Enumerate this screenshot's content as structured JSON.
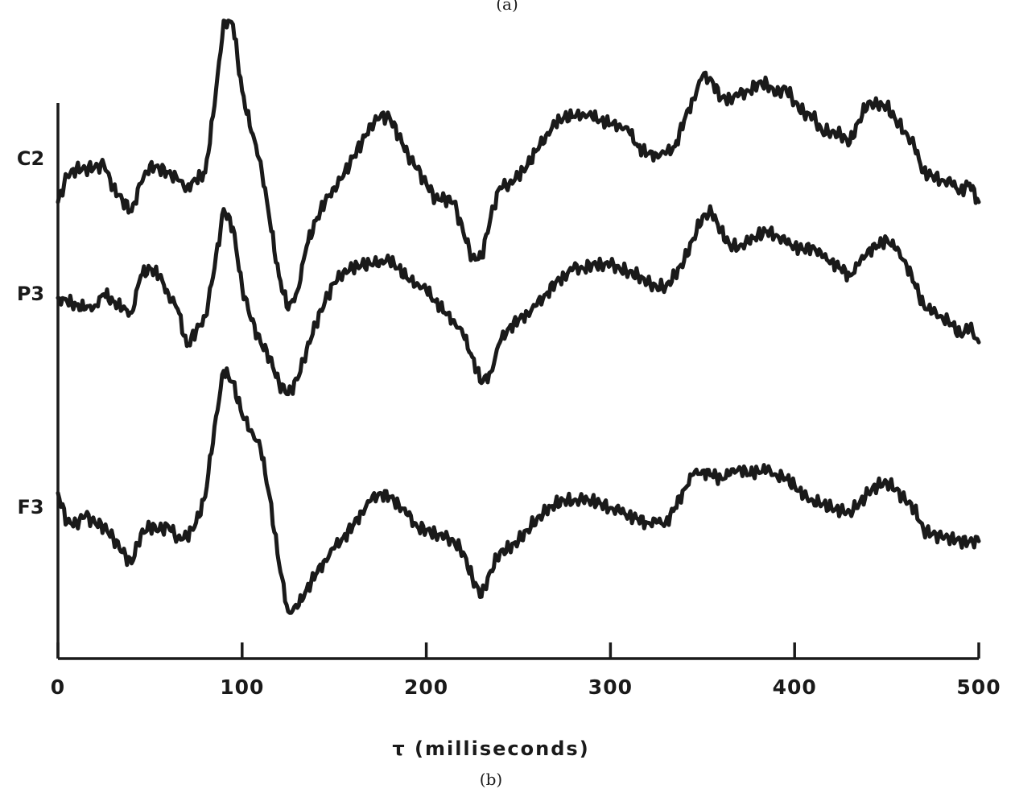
{
  "captions": {
    "top": "(a)",
    "bottom": "(b)"
  },
  "chart_data": {
    "type": "line",
    "xlabel": "τ (milliseconds)",
    "ylabel": "",
    "xlim": [
      0,
      500
    ],
    "xticks": [
      0,
      100,
      200,
      300,
      400,
      500
    ],
    "grid": false,
    "legend": "none (series labeled at left of each trace)",
    "series": [
      {
        "name": "C2",
        "x": [
          0,
          5,
          10,
          15,
          20,
          25,
          30,
          35,
          40,
          45,
          50,
          55,
          60,
          65,
          70,
          75,
          80,
          85,
          90,
          95,
          100,
          105,
          110,
          115,
          120,
          125,
          130,
          135,
          140,
          145,
          150,
          155,
          160,
          165,
          170,
          175,
          180,
          185,
          190,
          195,
          200,
          205,
          210,
          215,
          220,
          225,
          230,
          235,
          240,
          245,
          250,
          255,
          260,
          265,
          270,
          275,
          280,
          285,
          290,
          295,
          300,
          305,
          310,
          315,
          320,
          325,
          330,
          335,
          340,
          345,
          350,
          355,
          360,
          365,
          370,
          375,
          380,
          385,
          390,
          395,
          400,
          405,
          410,
          415,
          420,
          425,
          430,
          435,
          440,
          445,
          450,
          455,
          460,
          465,
          470,
          475,
          480,
          485,
          490,
          495,
          500
        ],
        "y": [
          -1.0,
          -0.3,
          -0.1,
          -0.1,
          -0.05,
          0.0,
          -0.6,
          -0.95,
          -1.25,
          -0.5,
          0.0,
          -0.1,
          -0.2,
          -0.4,
          -0.6,
          -0.4,
          -0.2,
          1.6,
          3.9,
          3.8,
          2.0,
          0.9,
          0.1,
          -1.5,
          -3.0,
          -3.9,
          -3.4,
          -2.2,
          -1.5,
          -1.0,
          -0.6,
          -0.3,
          0.2,
          0.6,
          1.1,
          1.3,
          1.3,
          0.8,
          0.3,
          -0.1,
          -0.5,
          -0.9,
          -0.9,
          -1.0,
          -1.8,
          -2.5,
          -2.5,
          -1.4,
          -0.6,
          -0.5,
          -0.3,
          0.0,
          0.4,
          0.8,
          1.1,
          1.3,
          1.3,
          1.4,
          1.3,
          1.2,
          1.1,
          1.1,
          0.9,
          0.5,
          0.3,
          0.3,
          0.3,
          0.5,
          1.2,
          1.8,
          2.4,
          2.3,
          1.8,
          1.8,
          1.9,
          2.0,
          2.2,
          2.2,
          1.9,
          2.1,
          1.7,
          1.4,
          1.3,
          0.9,
          0.9,
          0.8,
          0.6,
          1.2,
          1.7,
          1.6,
          1.6,
          1.2,
          0.9,
          0.5,
          -0.2,
          -0.3,
          -0.4,
          -0.5,
          -0.7,
          -0.5,
          -1.0
        ]
      },
      {
        "name": "P3",
        "x": [
          0,
          5,
          10,
          15,
          20,
          25,
          30,
          35,
          40,
          45,
          50,
          55,
          60,
          65,
          70,
          75,
          80,
          85,
          90,
          95,
          100,
          105,
          110,
          115,
          120,
          125,
          130,
          135,
          140,
          145,
          150,
          155,
          160,
          165,
          170,
          175,
          180,
          185,
          190,
          195,
          200,
          205,
          210,
          215,
          220,
          225,
          230,
          235,
          240,
          245,
          250,
          255,
          260,
          265,
          270,
          275,
          280,
          285,
          290,
          295,
          300,
          305,
          310,
          315,
          320,
          325,
          330,
          335,
          340,
          345,
          350,
          355,
          360,
          365,
          370,
          375,
          380,
          385,
          390,
          395,
          400,
          405,
          410,
          415,
          420,
          425,
          430,
          435,
          440,
          445,
          450,
          455,
          460,
          465,
          470,
          475,
          480,
          485,
          490,
          495,
          500
        ],
        "y": [
          0.0,
          -0.1,
          -0.2,
          -0.3,
          -0.2,
          0.1,
          -0.1,
          -0.3,
          -0.4,
          0.6,
          0.8,
          0.6,
          0.1,
          -0.3,
          -1.3,
          -0.9,
          -0.5,
          0.8,
          2.4,
          1.9,
          0.3,
          -0.6,
          -1.2,
          -1.6,
          -2.3,
          -2.6,
          -2.2,
          -1.4,
          -0.7,
          -0.1,
          0.4,
          0.7,
          0.8,
          0.9,
          0.9,
          1.0,
          1.0,
          0.8,
          0.5,
          0.4,
          0.2,
          -0.1,
          -0.4,
          -0.6,
          -1.0,
          -1.6,
          -2.3,
          -2.0,
          -1.2,
          -0.8,
          -0.6,
          -0.4,
          -0.2,
          0.1,
          0.4,
          0.6,
          0.8,
          0.8,
          0.9,
          0.9,
          0.9,
          0.8,
          0.7,
          0.6,
          0.4,
          0.3,
          0.3,
          0.6,
          1.0,
          1.6,
          2.2,
          2.3,
          1.8,
          1.4,
          1.4,
          1.5,
          1.7,
          1.8,
          1.7,
          1.5,
          1.4,
          1.3,
          1.4,
          1.1,
          1.0,
          0.8,
          0.6,
          0.9,
          1.3,
          1.4,
          1.6,
          1.3,
          1.0,
          0.4,
          -0.2,
          -0.4,
          -0.5,
          -0.7,
          -1.0,
          -0.8,
          -1.2
        ]
      },
      {
        "name": "F3",
        "x": [
          0,
          5,
          10,
          15,
          20,
          25,
          30,
          35,
          40,
          45,
          50,
          55,
          60,
          65,
          70,
          75,
          80,
          85,
          90,
          95,
          100,
          105,
          110,
          115,
          120,
          125,
          130,
          135,
          140,
          145,
          150,
          155,
          160,
          165,
          170,
          175,
          180,
          185,
          190,
          195,
          200,
          205,
          210,
          215,
          220,
          225,
          230,
          235,
          240,
          245,
          250,
          255,
          260,
          265,
          270,
          275,
          280,
          285,
          290,
          295,
          300,
          305,
          310,
          315,
          320,
          325,
          330,
          335,
          340,
          345,
          350,
          355,
          360,
          365,
          370,
          375,
          380,
          385,
          390,
          395,
          400,
          405,
          410,
          415,
          420,
          425,
          430,
          435,
          440,
          445,
          450,
          455,
          460,
          465,
          470,
          475,
          480,
          485,
          490,
          495,
          500
        ],
        "y": [
          0.6,
          -0.2,
          -0.2,
          0.0,
          -0.2,
          -0.3,
          -0.6,
          -1.0,
          -1.3,
          -0.5,
          -0.3,
          -0.4,
          -0.3,
          -0.6,
          -0.6,
          -0.2,
          0.5,
          2.4,
          3.9,
          3.6,
          2.7,
          2.3,
          1.8,
          0.5,
          -1.3,
          -2.6,
          -2.5,
          -2.0,
          -1.6,
          -1.2,
          -0.9,
          -0.6,
          -0.3,
          0.1,
          0.4,
          0.6,
          0.5,
          0.3,
          0.0,
          -0.3,
          -0.4,
          -0.5,
          -0.6,
          -0.7,
          -1.0,
          -1.7,
          -2.2,
          -1.5,
          -1.0,
          -0.9,
          -0.7,
          -0.4,
          -0.1,
          0.1,
          0.3,
          0.4,
          0.4,
          0.4,
          0.4,
          0.3,
          0.2,
          0.1,
          0.0,
          -0.1,
          -0.2,
          -0.2,
          -0.2,
          0.2,
          0.7,
          1.1,
          1.2,
          1.1,
          1.0,
          1.1,
          1.3,
          1.1,
          1.2,
          1.2,
          1.1,
          1.0,
          0.8,
          0.5,
          0.4,
          0.3,
          0.2,
          0.1,
          0.1,
          0.3,
          0.6,
          0.8,
          0.9,
          0.7,
          0.4,
          0.2,
          -0.4,
          -0.5,
          -0.6,
          -0.6,
          -0.7,
          -0.7,
          -0.7
        ]
      }
    ]
  }
}
